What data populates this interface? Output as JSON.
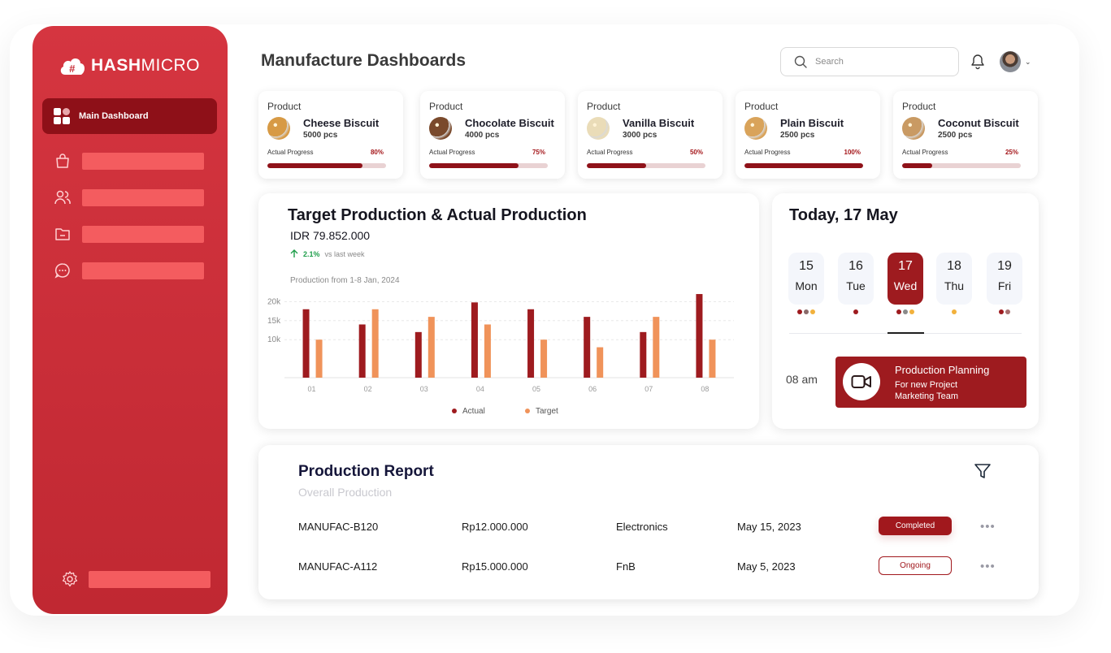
{
  "brand": {
    "logo_text_bold": "HASH",
    "logo_text_light": "MICRO"
  },
  "sidebar": {
    "main_item": "Main Dashboard"
  },
  "header": {
    "title": "Manufacture Dashboards",
    "search_placeholder": "Search"
  },
  "products": [
    {
      "label": "Product",
      "name": "Cheese Biscuit",
      "qty": "5000 pcs",
      "progress_label": "Actual Progress",
      "progress_text": "80%",
      "progress": 0.8,
      "thumb_color": "#d79a45"
    },
    {
      "label": "Product",
      "name": "Chocolate Biscuit",
      "qty": "4000 pcs",
      "progress_label": "Actual Progress",
      "progress_text": "75%",
      "progress": 0.75,
      "thumb_color": "#7a4a2c"
    },
    {
      "label": "Product",
      "name": "Vanilla Biscuit",
      "qty": "3000 pcs",
      "progress_label": "Actual Progress",
      "progress_text": "50%",
      "progress": 0.5,
      "thumb_color": "#eadcb8"
    },
    {
      "label": "Product",
      "name": "Plain Biscuit",
      "qty": "2500 pcs",
      "progress_label": "Actual Progress",
      "progress_text": "100%",
      "progress": 1.0,
      "thumb_color": "#d9a35a"
    },
    {
      "label": "Product",
      "name": "Coconut Biscuit",
      "qty": "2500 pcs",
      "progress_label": "Actual Progress",
      "progress_text": "25%",
      "progress": 0.25,
      "thumb_color": "#c99a63"
    }
  ],
  "production": {
    "title": "Target Production & Actual Production",
    "amount": "IDR 79.852.000",
    "change": "2.1%",
    "change_suffix": "vs last week",
    "subtitle": "Production from 1-8 Jan, 2024"
  },
  "chart_data": {
    "type": "bar",
    "title": "Target Production & Actual Production",
    "categories": [
      "01",
      "02",
      "03",
      "04",
      "05",
      "06",
      "07",
      "08"
    ],
    "series": [
      {
        "name": "Actual",
        "color": "#9e1b1f",
        "values": [
          18000,
          14000,
          12000,
          19800,
          18000,
          16000,
          12000,
          22000
        ]
      },
      {
        "name": "Target",
        "color": "#f0935a",
        "values": [
          10000,
          18000,
          16000,
          14000,
          10000,
          8000,
          16000,
          10000
        ]
      }
    ],
    "y_ticks": [
      "10k",
      "15k",
      "20k"
    ],
    "ylim": [
      0,
      25000
    ],
    "legend_position": "bottom",
    "grid": true
  },
  "calendar": {
    "title": "Today, 17 May",
    "days": [
      {
        "num": "15",
        "name": "Mon",
        "dots": [
          "#9e1b1f",
          "#8a6a6a",
          "#f2b13c"
        ]
      },
      {
        "num": "16",
        "name": "Tue",
        "dots": [
          "#9e1b1f"
        ]
      },
      {
        "num": "17",
        "name": "Wed",
        "dots": [
          "#9e1b1f",
          "#8a8a8a",
          "#f2b13c"
        ]
      },
      {
        "num": "18",
        "name": "Thu",
        "dots": [
          "#f2b13c"
        ]
      },
      {
        "num": "19",
        "name": "Fri",
        "dots": [
          "#9e1b1f",
          "#a87070"
        ]
      }
    ],
    "event_time": "08 am",
    "event_title": "Production Planning",
    "event_line1": "For new Project",
    "event_line2": "Marketing Team"
  },
  "report": {
    "title": "Production Report",
    "subtitle": "Overall Production",
    "rows": [
      {
        "id": "MANUFAC-B120",
        "amount": "Rp12.000.000",
        "category": "Electronics",
        "date": "May 15, 2023",
        "status": "Completed"
      },
      {
        "id": "MANUFAC-A112",
        "amount": "Rp15.000.000",
        "category": "FnB",
        "date": "May 5, 2023",
        "status": "Ongoing"
      }
    ]
  },
  "colors": {
    "brand_red": "#c8303a",
    "dark_red": "#9e1b1f",
    "accent_orange": "#f0935a"
  }
}
